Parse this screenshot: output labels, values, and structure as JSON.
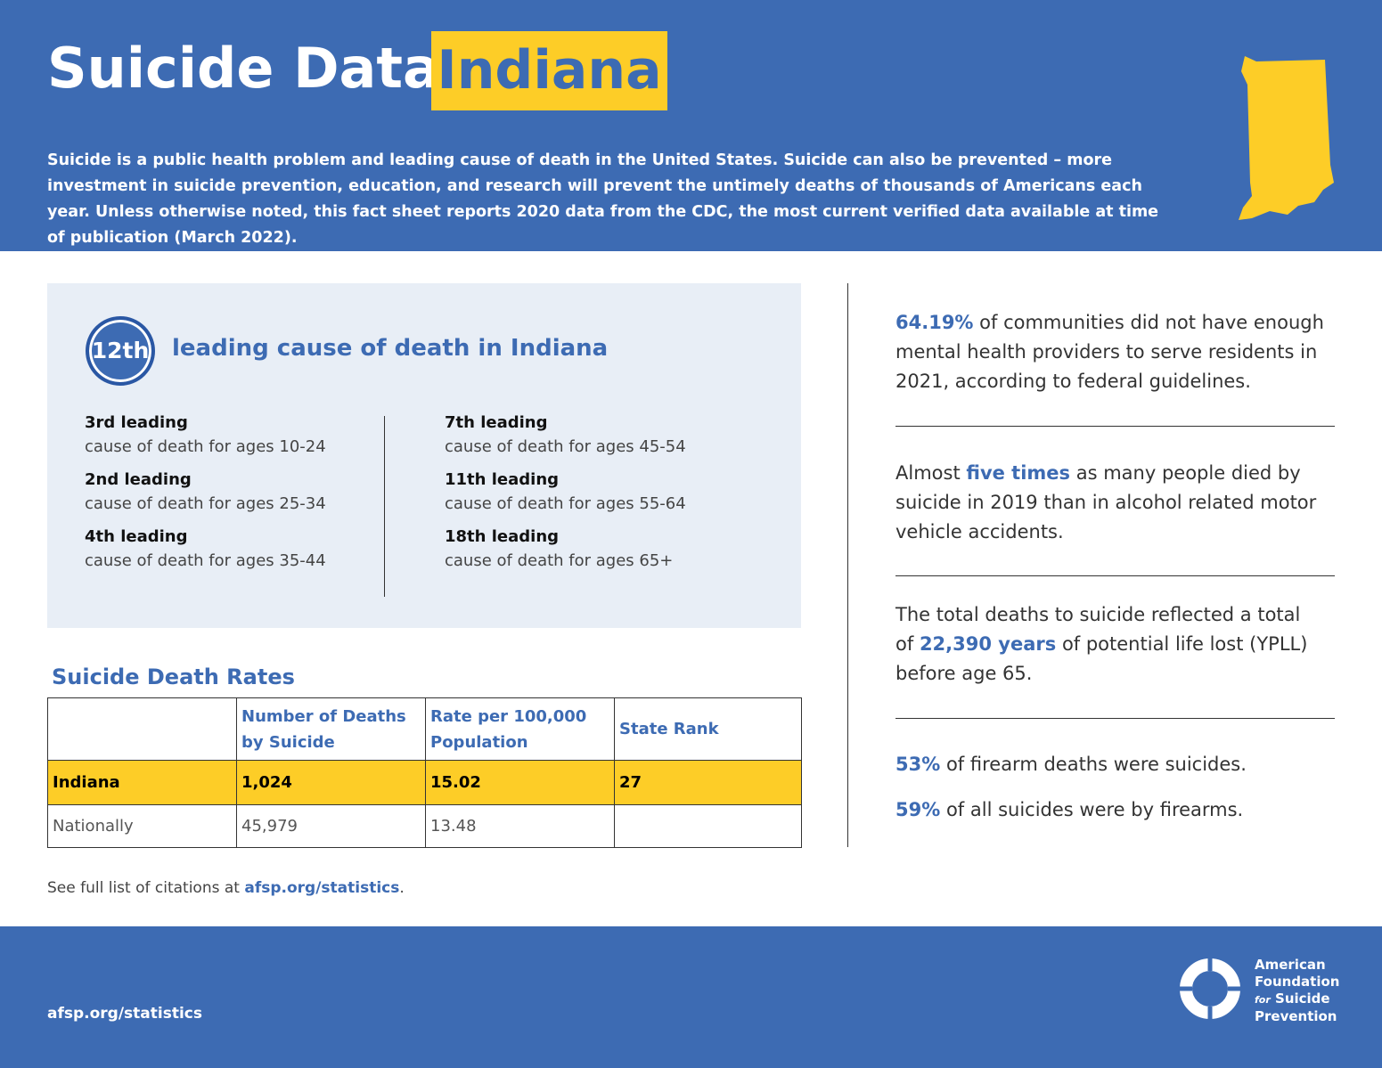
{
  "header": {
    "title": "Suicide Data:",
    "state": "Indiana",
    "intro": "Suicide is a public health problem and leading cause of death in the United States. Suicide can also be prevented – more investment in suicide prevention, education, and research will prevent the untimely deaths of thousands of Americans each year. Unless otherwise noted, this fact sheet reports 2020 data from the CDC, the most current verified data available at time of publication (March 2022)."
  },
  "leading": {
    "rank": "12th",
    "label": "leading cause of death in Indiana",
    "items": [
      {
        "rank": "3rd leading",
        "text": "cause of death for ages 10-24"
      },
      {
        "rank": "2nd leading",
        "text": "cause of death for ages 25-34"
      },
      {
        "rank": "4th leading",
        "text": "cause of death for ages 35-44"
      },
      {
        "rank": "7th leading",
        "text": "cause of death for ages 45-54"
      },
      {
        "rank": "11th leading",
        "text": "cause of death for ages 55-64"
      },
      {
        "rank": "18th leading",
        "text": "cause of death for ages 65+"
      }
    ]
  },
  "rates": {
    "title": "Suicide Death Rates",
    "columns": [
      "Number of Deaths by Suicide",
      "Rate per 100,000 Population",
      "State Rank"
    ],
    "rows": [
      [
        "Indiana",
        "1,024",
        "15.02",
        "27"
      ],
      [
        "Nationally",
        "45,979",
        "13.48"
      ]
    ]
  },
  "citation": {
    "text": "See full list of citations at",
    "link": "afsp.org/statistics",
    "end": "."
  },
  "facts": [
    {
      "highlight": "64.19%",
      "after": "of communities did not have enough mental health providers to serve residents in 2021, according to federal guidelines."
    },
    {
      "before": "Almost",
      "highlight": "five times",
      "after": "as many people died by suicide in 2019 than in alcohol related motor vehicle accidents."
    },
    {
      "before": "The total deaths to suicide reflected a total of",
      "highlight": "22,390 years",
      "after": "of potential life lost (YPLL) before age 65."
    },
    {
      "highlight": "53%",
      "after": "of firearm deaths were suicides."
    },
    {
      "highlight": "59%",
      "after": "of all suicides were by firearms."
    }
  ],
  "footer": {
    "url": "afsp.org/statistics",
    "org": {
      "line1": "American",
      "line2": "Foundation",
      "for": "for",
      "line3": "Suicide",
      "line4": "Prevention"
    }
  }
}
